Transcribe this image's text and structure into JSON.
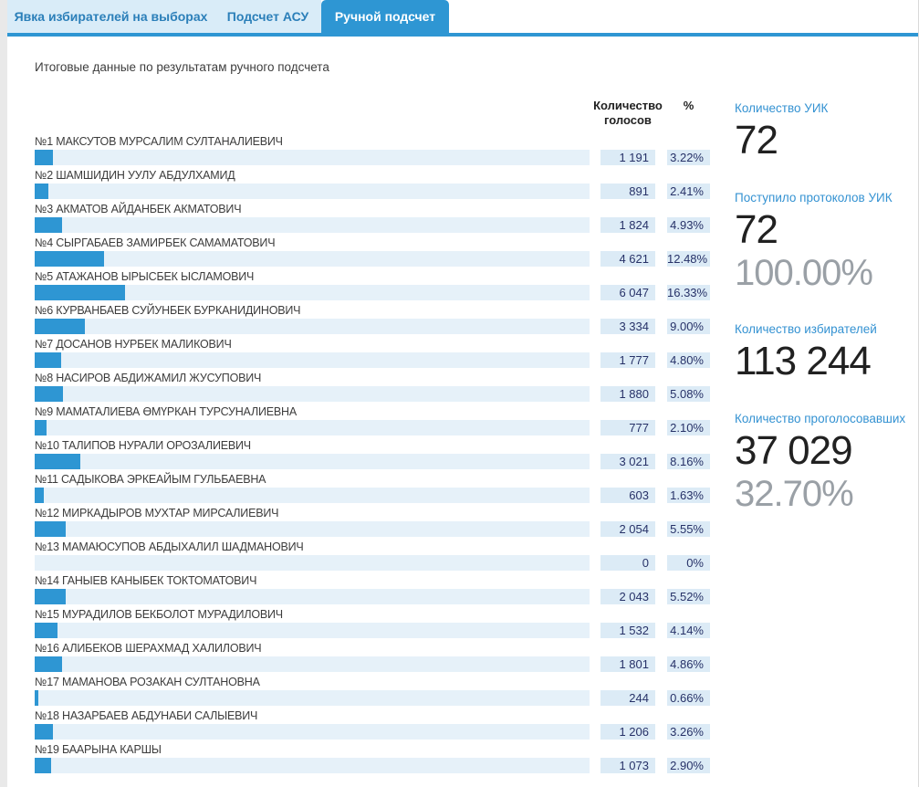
{
  "tabs": [
    {
      "id": "tab-voter-turnout",
      "label": "Явка избирателей на выборах",
      "active": false
    },
    {
      "id": "tab-asu-count",
      "label": "Подсчет АСУ",
      "active": false
    },
    {
      "id": "tab-manual-count",
      "label": "Ручной подсчет",
      "active": true
    }
  ],
  "title": "Итоговые данные по результатам ручного подсчета",
  "results": {
    "votes_header": "Количество голосов",
    "pct_header": "%",
    "candidates": [
      {
        "name": "№1 МАКСУТОВ МУРСАЛИМ СУЛТАНАЛИЕВИЧ",
        "votes": "1 191",
        "pct": "3.22%",
        "pct_value": 3.22
      },
      {
        "name": "№2 ШАМШИДИН УУЛУ АБДУЛХАМИД",
        "votes": "891",
        "pct": "2.41%",
        "pct_value": 2.41
      },
      {
        "name": "№3 АКМАТОВ АЙДАНБЕК АКМАТОВИЧ",
        "votes": "1 824",
        "pct": "4.93%",
        "pct_value": 4.93
      },
      {
        "name": "№4 СЫРГАБАЕВ ЗАМИРБЕК САМАМАТОВИЧ",
        "votes": "4 621",
        "pct": "12.48%",
        "pct_value": 12.48
      },
      {
        "name": "№5 АТАЖАНОВ ЫРЫСБЕК ЫСЛАМОВИЧ",
        "votes": "6 047",
        "pct": "16.33%",
        "pct_value": 16.33
      },
      {
        "name": "№6 КУРВАНБАЕВ СУЙУНБЕК БУРКАНИДИНОВИЧ",
        "votes": "3 334",
        "pct": "9.00%",
        "pct_value": 9.0
      },
      {
        "name": "№7 ДОСАНОВ НУРБЕК МАЛИКОВИЧ",
        "votes": "1 777",
        "pct": "4.80%",
        "pct_value": 4.8
      },
      {
        "name": "№8 НАСИРОВ АБДИЖАМИЛ ЖУСУПОВИЧ",
        "votes": "1 880",
        "pct": "5.08%",
        "pct_value": 5.08
      },
      {
        "name": "№9 МАМАТАЛИЕВА ӨМҮРКАН ТУРСУНАЛИЕВНА",
        "votes": "777",
        "pct": "2.10%",
        "pct_value": 2.1
      },
      {
        "name": "№10 ТАЛИПОВ НУРАЛИ ОРОЗАЛИЕВИЧ",
        "votes": "3 021",
        "pct": "8.16%",
        "pct_value": 8.16
      },
      {
        "name": "№11 САДЫКОВА ЭРКЕАЙЫМ ГУЛЬБАЕВНА",
        "votes": "603",
        "pct": "1.63%",
        "pct_value": 1.63
      },
      {
        "name": "№12 МИРКАДЫРОВ МУХТАР МИРСАЛИЕВИЧ",
        "votes": "2 054",
        "pct": "5.55%",
        "pct_value": 5.55
      },
      {
        "name": "№13 МАМАЮСУПОВ АБДЫХАЛИЛ ШАДМАНОВИЧ",
        "votes": "0",
        "pct": "0%",
        "pct_value": 0
      },
      {
        "name": "№14 ГАНЫЕВ КАНЫБЕК ТОКТОМАТОВИЧ",
        "votes": "2 043",
        "pct": "5.52%",
        "pct_value": 5.52
      },
      {
        "name": "№15 МУРАДИЛОВ БЕКБОЛОТ МУРАДИЛОВИЧ",
        "votes": "1 532",
        "pct": "4.14%",
        "pct_value": 4.14
      },
      {
        "name": "№16 АЛИБЕКОВ ШЕРАХМАД ХАЛИЛОВИЧ",
        "votes": "1 801",
        "pct": "4.86%",
        "pct_value": 4.86
      },
      {
        "name": "№17 МАМАНОВА РОЗАКАН СУЛТАНОВНА",
        "votes": "244",
        "pct": "0.66%",
        "pct_value": 0.66
      },
      {
        "name": "№18 НАЗАРБАЕВ АБДУНАБИ САЛЫЕВИЧ",
        "votes": "1 206",
        "pct": "3.26%",
        "pct_value": 3.26
      },
      {
        "name": "№19 БААРЫНА КАРШЫ",
        "votes": "1 073",
        "pct": "2.90%",
        "pct_value": 2.9
      }
    ]
  },
  "summary": {
    "blocks": [
      {
        "id": "uik-count",
        "label": "Количество УИК",
        "value": "72",
        "sub": ""
      },
      {
        "id": "uik-protocols-received",
        "label": "Поступило протоколов УИК",
        "value": "72",
        "sub": "100.00%"
      },
      {
        "id": "voters-count",
        "label": "Количество избирателей",
        "value": "113 244",
        "sub": ""
      },
      {
        "id": "voted-count",
        "label": "Количество проголосовавших",
        "value": "37 029",
        "sub": "32.70%"
      }
    ]
  },
  "colors": {
    "accent": "#2e96d3",
    "tab_inactive_bg": "#d9ecf8",
    "tab_text": "#2b7fb9",
    "bar_track": "#e6f1f9",
    "cell_bg": "#dcebf6",
    "cell_text": "#273268",
    "label_blue": "#3492d2",
    "big_number": "#212121",
    "sub_gray": "#9aa0a6"
  }
}
